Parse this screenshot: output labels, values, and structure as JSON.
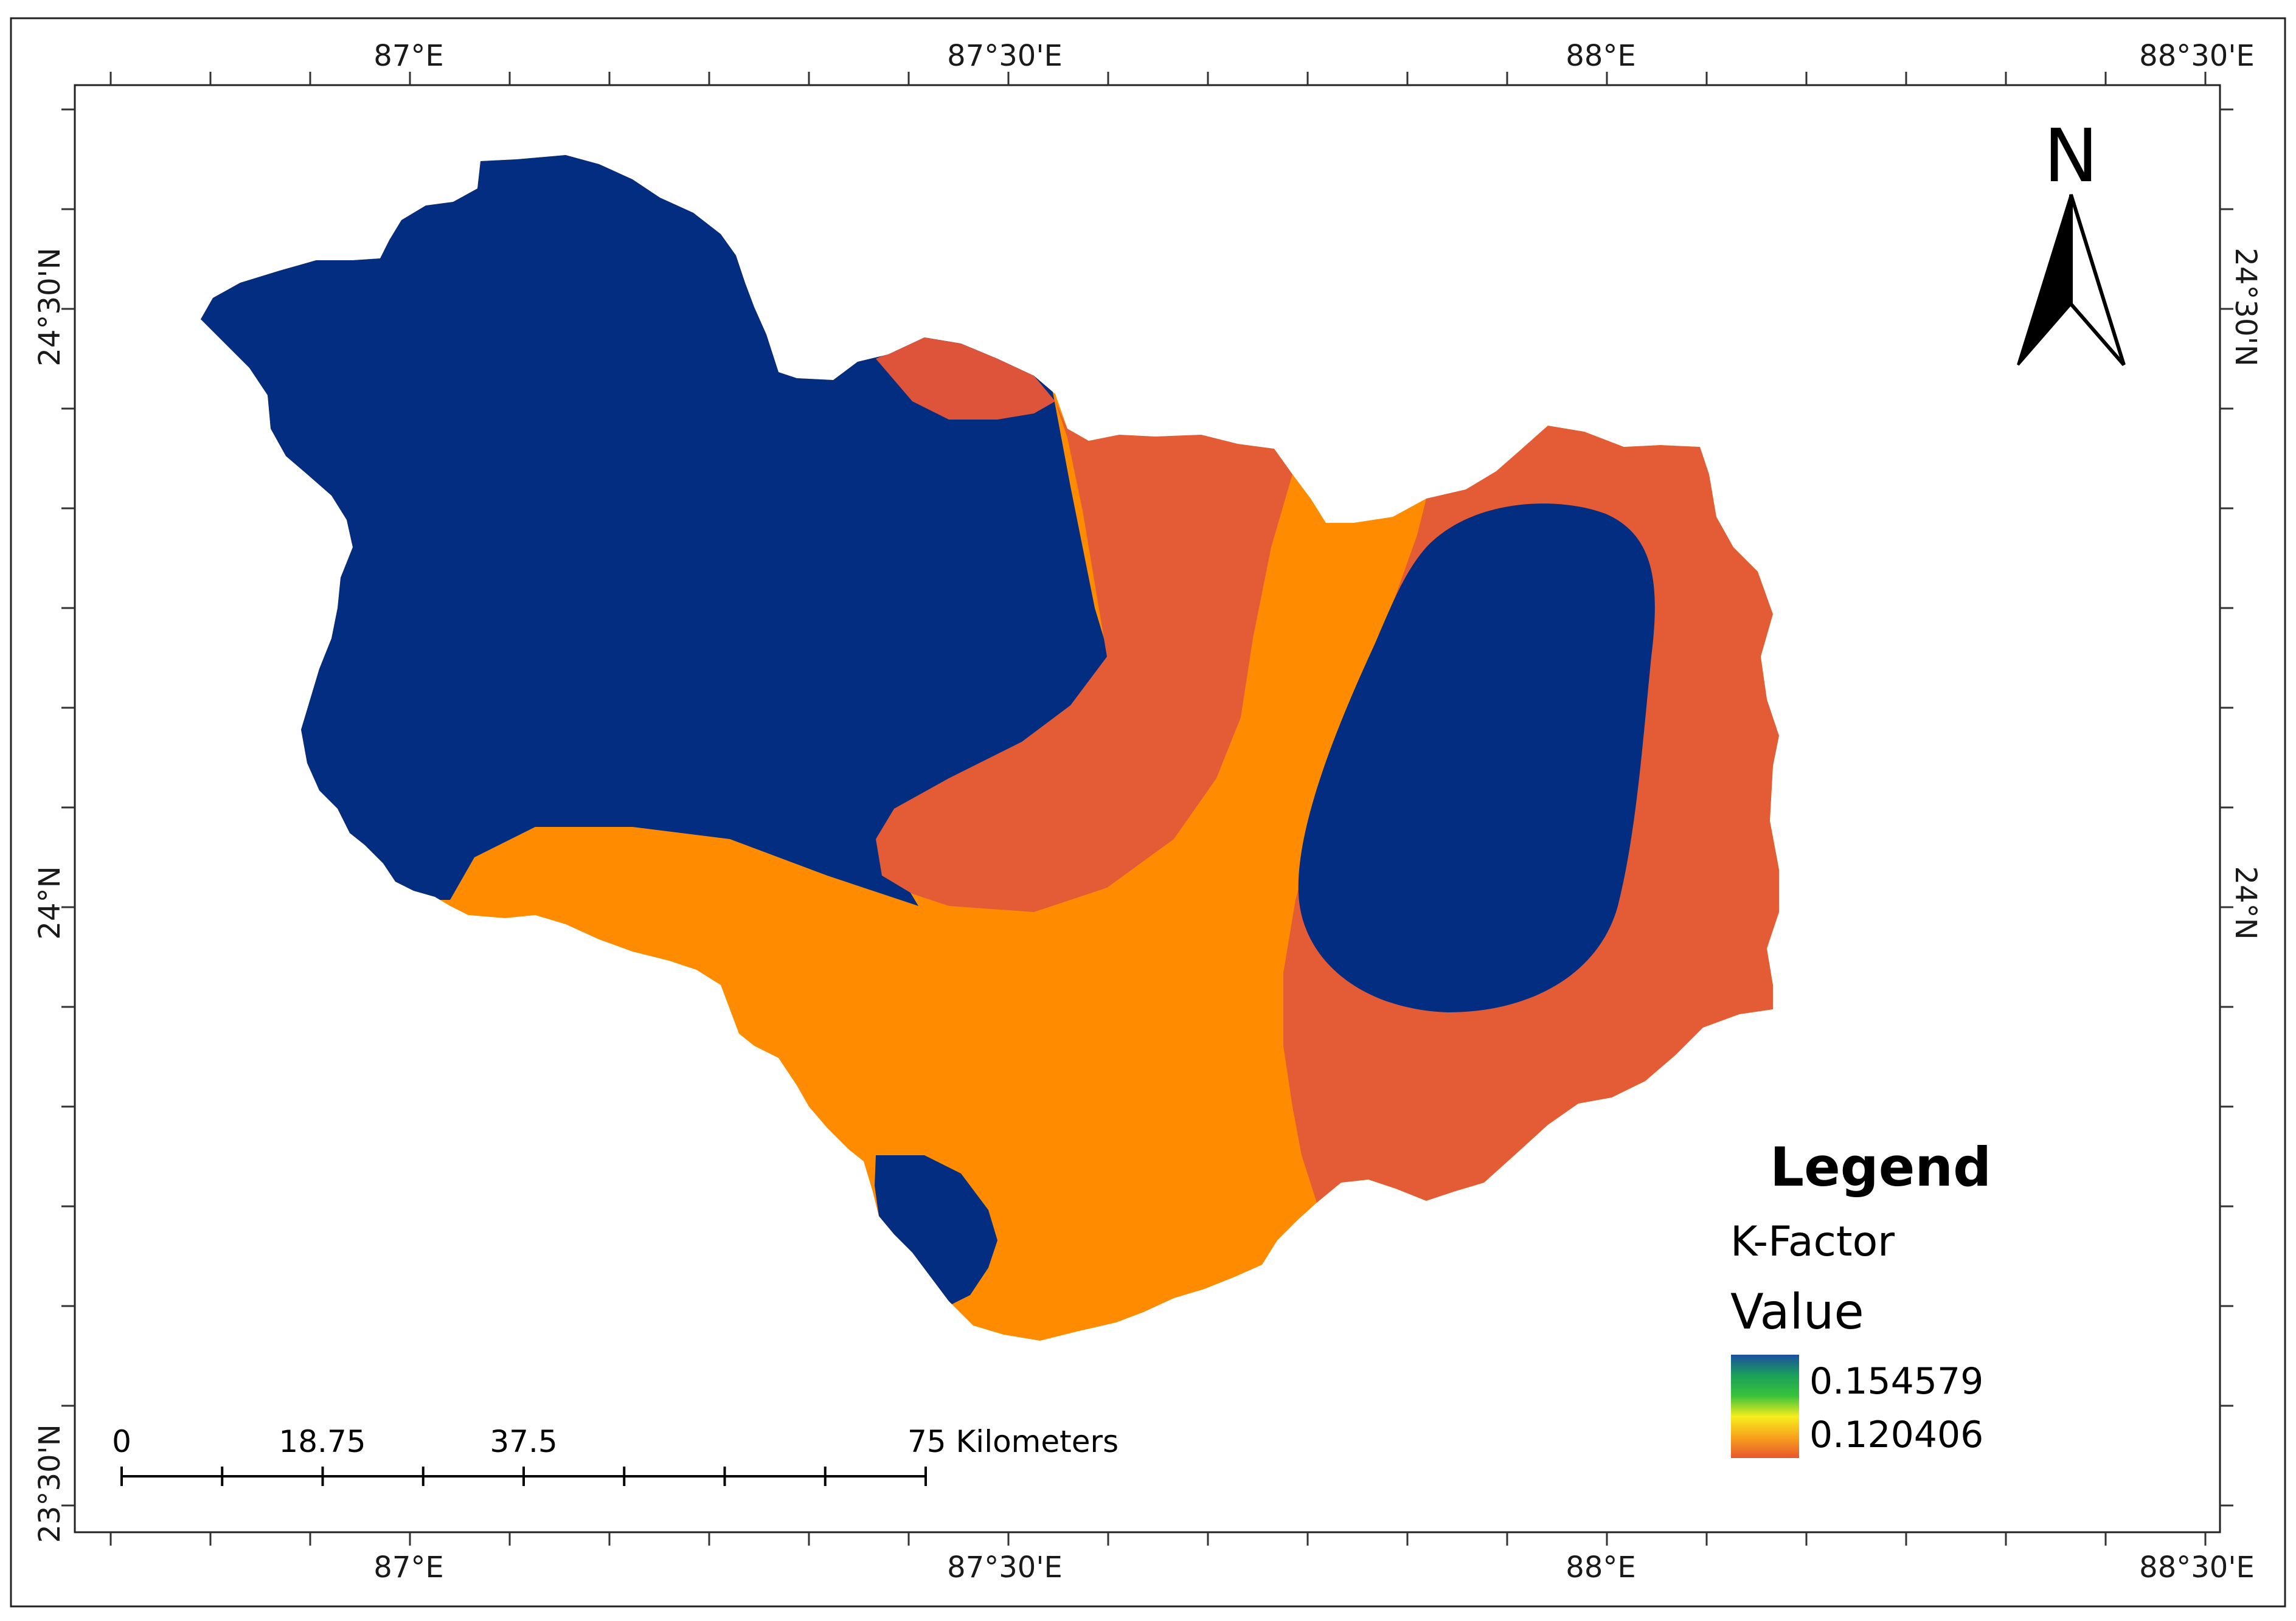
{
  "graticule": {
    "lon_labels": [
      "87°E",
      "87°30'E",
      "88°E",
      "88°30'E"
    ],
    "lat_labels": [
      "24°30'N",
      "24°N",
      "23°30'N"
    ]
  },
  "north_arrow": {
    "label": "N"
  },
  "legend": {
    "title": "Legend",
    "layer": "K-Factor",
    "field": "Value",
    "high": "0.154579",
    "low": "0.120406",
    "ramp_colors": [
      "#1a4fa0",
      "#1aa05a",
      "#39c23c",
      "#f7ee1c",
      "#f7a11c",
      "#e8562e"
    ]
  },
  "scale_bar": {
    "labels": [
      "0",
      "18.75",
      "37.5",
      "75 Kilometers"
    ]
  },
  "colors": {
    "high_k": "#032d80",
    "mid_k": "#ff8c00",
    "low_k": "#e45c35",
    "low_k_north": "#dd543a"
  }
}
